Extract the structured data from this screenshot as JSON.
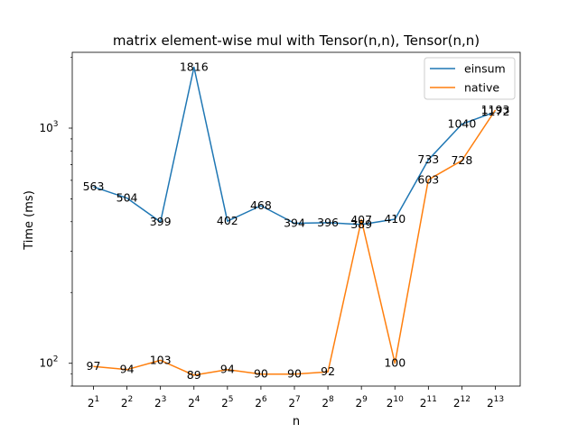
{
  "chart_data": {
    "type": "line",
    "title": "matrix element-wise mul with Tensor(n,n), Tensor(n,n)",
    "xlabel": "n",
    "ylabel": "Time (ms)",
    "yscale": "log",
    "ylim": [
      80,
      2100
    ],
    "y_ticks": [
      {
        "value": 100,
        "base": "10",
        "exp": "2"
      },
      {
        "value": 1000,
        "base": "10",
        "exp": "3"
      }
    ],
    "categories": [
      {
        "base": "2",
        "exp": "1"
      },
      {
        "base": "2",
        "exp": "2"
      },
      {
        "base": "2",
        "exp": "3"
      },
      {
        "base": "2",
        "exp": "4"
      },
      {
        "base": "2",
        "exp": "5"
      },
      {
        "base": "2",
        "exp": "6"
      },
      {
        "base": "2",
        "exp": "7"
      },
      {
        "base": "2",
        "exp": "8"
      },
      {
        "base": "2",
        "exp": "9"
      },
      {
        "base": "2",
        "exp": "10"
      },
      {
        "base": "2",
        "exp": "11"
      },
      {
        "base": "2",
        "exp": "12"
      },
      {
        "base": "2",
        "exp": "13"
      }
    ],
    "series": [
      {
        "name": "einsum",
        "color": "#1f77b4",
        "values": [
          563,
          504,
          399,
          1816,
          402,
          468,
          394,
          396,
          389,
          410,
          733,
          1040,
          1172
        ]
      },
      {
        "name": "native",
        "color": "#ff7f0e",
        "values": [
          97,
          94,
          103,
          89,
          94,
          90,
          90,
          92,
          407,
          100,
          603,
          728,
          1193
        ]
      }
    ],
    "legend_position": "top-right",
    "grid": false
  }
}
